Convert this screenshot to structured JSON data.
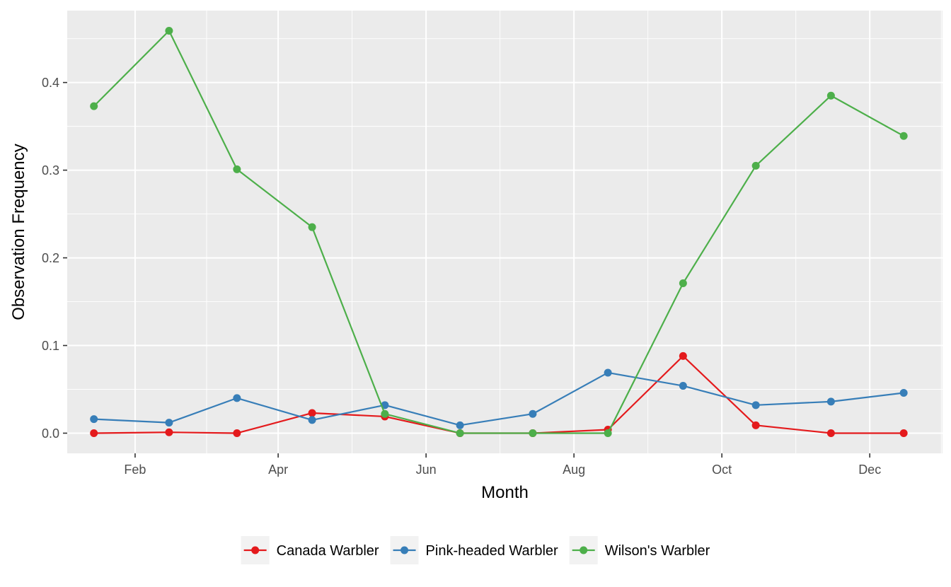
{
  "chart_data": {
    "type": "line",
    "xlabel": "Month",
    "ylabel": "Observation Frequency",
    "x_tick_labels": [
      "Feb",
      "Apr",
      "Jun",
      "Aug",
      "Oct",
      "Dec"
    ],
    "x_tick_dates": [
      "2023-02-01",
      "2023-04-01",
      "2023-06-01",
      "2023-08-01",
      "2023-10-01",
      "2023-12-01"
    ],
    "y_tick_labels": [
      "0.0",
      "0.1",
      "0.2",
      "0.3",
      "0.4"
    ],
    "y_ticks": [
      0.0,
      0.1,
      0.2,
      0.3,
      0.4
    ],
    "ylim": [
      -0.023,
      0.482
    ],
    "xlim": [
      "2023-01-04",
      "2023-12-31"
    ],
    "x": [
      "2023-01-15",
      "2023-02-15",
      "2023-03-15",
      "2023-04-15",
      "2023-05-15",
      "2023-06-15",
      "2023-07-15",
      "2023-08-15",
      "2023-09-15",
      "2023-10-15",
      "2023-11-15",
      "2023-12-15"
    ],
    "series": [
      {
        "name": "Canada Warbler",
        "color": "#E41A1C",
        "values": [
          0.0,
          0.001,
          0.0,
          0.023,
          0.019,
          0.0,
          0.0,
          0.004,
          0.088,
          0.009,
          0.0,
          0.0
        ]
      },
      {
        "name": "Pink-headed Warbler",
        "color": "#377EB8",
        "values": [
          0.016,
          0.012,
          0.04,
          0.015,
          0.032,
          0.009,
          0.022,
          0.069,
          0.054,
          0.032,
          0.036,
          0.046
        ]
      },
      {
        "name": "Wilson's Warbler",
        "color": "#4DAF4A",
        "values": [
          0.373,
          0.459,
          0.301,
          0.235,
          0.022,
          0.0,
          0.0,
          0.0,
          0.171,
          0.305,
          0.385,
          0.339
        ]
      }
    ],
    "legend_position": "bottom",
    "grid": true,
    "panel_background": "#EBEBEB"
  }
}
